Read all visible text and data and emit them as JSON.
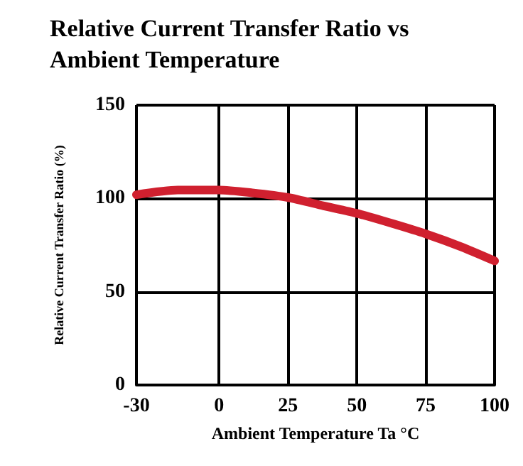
{
  "chart_data": {
    "type": "line",
    "title": "Relative Current Transfer Ratio vs\nAmbient Temperature",
    "xlabel": "Ambient Temperature Ta °C",
    "ylabel": "Relative Current Transfer Ratio (%)",
    "x": [
      -30,
      -15,
      0,
      12,
      25,
      38,
      50,
      63,
      75,
      88,
      100
    ],
    "series": [
      {
        "color": "#d0202f",
        "values": [
          102,
          104.5,
          104.5,
          103,
          100.5,
          96,
          92,
          86.5,
          81,
          74,
          66.5
        ]
      }
    ],
    "xlim": [
      -30,
      100
    ],
    "xticks": [
      -30,
      0,
      25,
      50,
      75,
      100
    ],
    "ylim": [
      0,
      150
    ],
    "yticks": [
      0,
      50,
      100,
      150
    ],
    "grid": true,
    "marker": "none",
    "line_style": "solid"
  }
}
